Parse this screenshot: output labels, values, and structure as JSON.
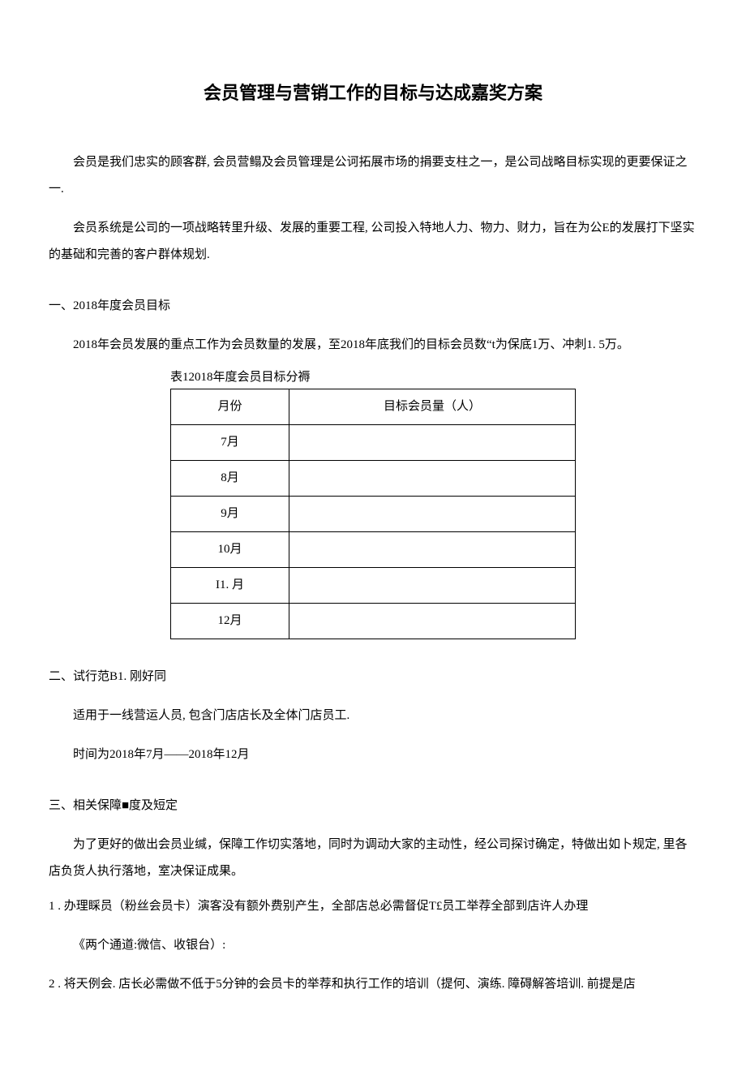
{
  "title": "会员管理与营销工作的目标与达成嘉奖方案",
  "intro": {
    "p1": "会员是我们忠实的顾客群, 会员营鳎及会员管理是公诃拓展市场的捐要支柱之一，是公司战略目标实现的更要保证之一.",
    "p2": "会员系统是公司的一项战略转里升级、发展的重要工程, 公司投入特地人力、物力、财力，旨在为公E的发展打下坚实的基础和完善的客户群体规划."
  },
  "section1": {
    "heading": "一、2018年度会员目标",
    "body": "2018年会员发展的重点工作为会员数量的发展，至2018年底我们的目标会员数“t为保底1万、冲刺1. 5万。",
    "table_caption": "表12018年度会员目标分褥",
    "table": {
      "header_col1": "月份",
      "header_col2": "目标会员量（人）",
      "rows": [
        {
          "month": "7月",
          "target": ""
        },
        {
          "month": "8月",
          "target": ""
        },
        {
          "month": "9月",
          "target": ""
        },
        {
          "month": "10月",
          "target": ""
        },
        {
          "month": "I1. 月",
          "target": ""
        },
        {
          "month": "12月",
          "target": ""
        }
      ]
    }
  },
  "section2": {
    "heading": "二、试行范B1. 刚好同",
    "body1": "适用于一线营运人员, 包含门店店长及全体门店员工.",
    "body2": "时间为2018年7月——2018年12月"
  },
  "section3": {
    "heading": "三、相关保障■度及短定",
    "body": "为了更好的做出会员业缄，保障工作切实落地，同时为调动大家的主动性，经公司探讨确定，特做出如卜规定, 里各店负货人执行落地，室决保证成果。",
    "item1_num": "1",
    "item1_text": " . 办理睬员（粉丝会员卡）演客没有额外费别产生，全部店总必需督促T£员工举荐全部到店许人办理",
    "item1_sub": "《两个通道:微信、收银台）:",
    "item2_num": "2",
    "item2_text": "   . 将天例会. 店长必需做不低于5分钟的会员卡的举荐和执行工作的培训（提何、演练. 障碍解答培训. 前提是店"
  }
}
